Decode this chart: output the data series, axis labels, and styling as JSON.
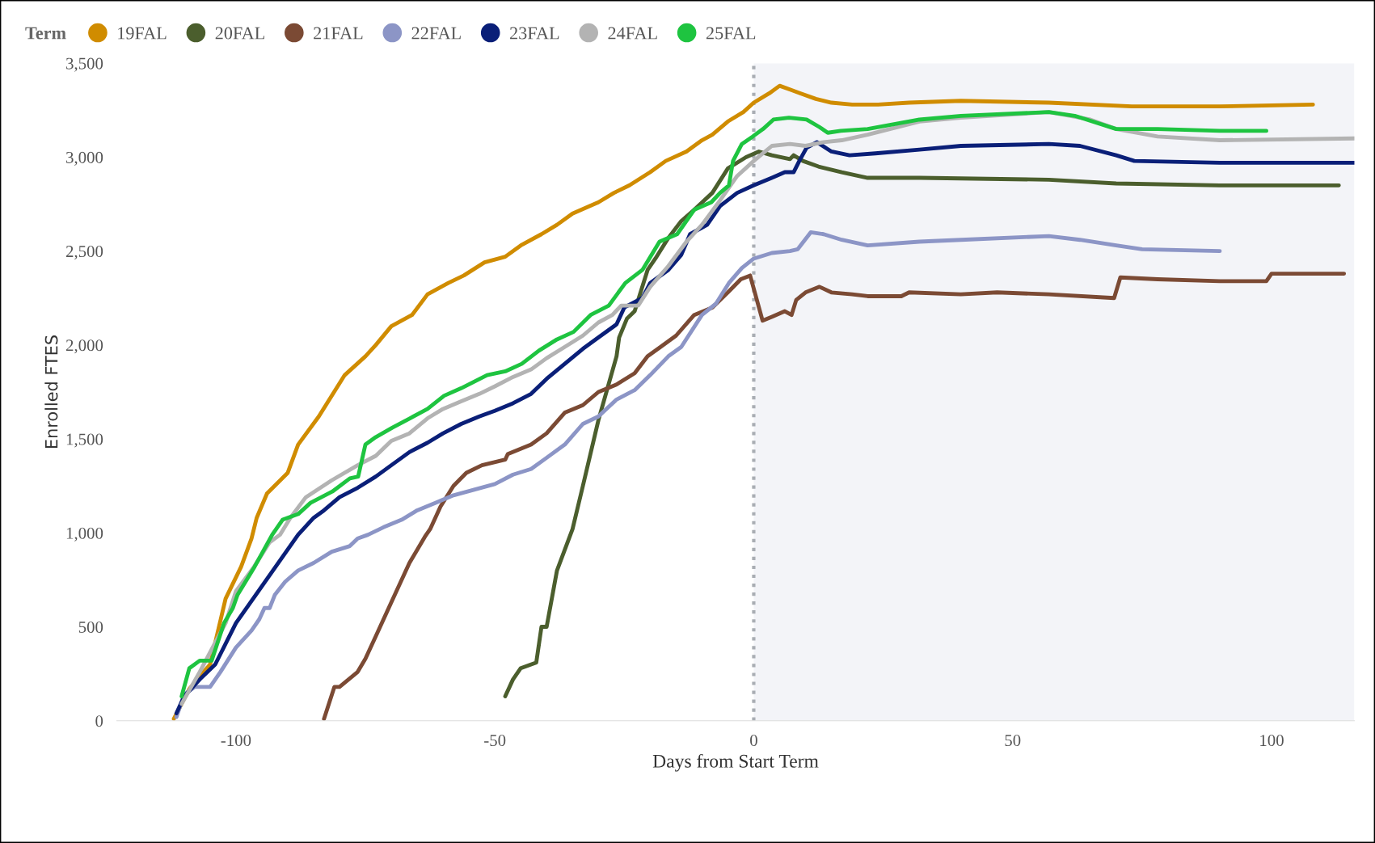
{
  "chart_data": {
    "type": "line",
    "xlabel": "Days from Start Term",
    "ylabel": "Enrolled FTES",
    "legend_title": "Term",
    "legend": "top left",
    "grid": false,
    "marker": "none",
    "line_style": "solid",
    "xlim": [
      -123,
      116
    ],
    "xticks": [
      -100,
      -50,
      0,
      50,
      100
    ],
    "ylim": [
      0,
      3500
    ],
    "yticks": [
      {
        "value": 0,
        "label": "0"
      },
      {
        "value": 500,
        "label": "500"
      },
      {
        "value": 1000,
        "label": "1,000"
      },
      {
        "value": 1500,
        "label": "1,500"
      },
      {
        "value": 2000,
        "label": "2,000"
      },
      {
        "value": 2500,
        "label": "2,500"
      },
      {
        "value": 3000,
        "label": "3,000"
      },
      {
        "value": 3500,
        "label": "3,500"
      }
    ],
    "ref_lines": [
      {
        "axis": "x",
        "value": 0,
        "label": null,
        "color": "#a9adb3",
        "line_style": "dotted"
      }
    ],
    "bands": [
      {
        "axis": "x",
        "from": 0,
        "to": 116,
        "label": null,
        "color": "#f3f4f8"
      }
    ],
    "series": [
      {
        "name": "19FAL",
        "color": "#d08c00",
        "x": [
          -112,
          -109,
          -105,
          -102,
          -99,
          -97,
          -96,
          -94,
          -90,
          -88,
          -84,
          -79,
          -75,
          -73,
          -70,
          -66,
          -63,
          -59,
          -56,
          -52,
          -48,
          -45,
          -41,
          -38,
          -35,
          -30,
          -27,
          -24,
          -20,
          -17,
          -13,
          -10,
          -8,
          -5,
          -2,
          0,
          3,
          5,
          7,
          9,
          12,
          15,
          19,
          24,
          30,
          40,
          57,
          73,
          90,
          108
        ],
        "values": [
          10,
          170,
          300,
          650,
          820,
          970,
          1080,
          1210,
          1320,
          1470,
          1620,
          1840,
          1940,
          2000,
          2100,
          2160,
          2270,
          2330,
          2370,
          2440,
          2470,
          2530,
          2590,
          2640,
          2700,
          2760,
          2810,
          2850,
          2920,
          2980,
          3030,
          3090,
          3120,
          3190,
          3240,
          3290,
          3340,
          3380,
          3360,
          3340,
          3310,
          3290,
          3280,
          3280,
          3290,
          3300,
          3290,
          3270,
          3270,
          3280
        ]
      },
      {
        "name": "20FAL",
        "color": "#4b5e2d",
        "x": [
          -48,
          -46.5,
          -45,
          -42,
          -41,
          -40,
          -38,
          -35,
          -33,
          -30,
          -26.5,
          -26,
          -24.5,
          -23,
          -20.5,
          -19,
          -16.5,
          -14,
          -11.5,
          -8,
          -5,
          -1.5,
          1,
          3.5,
          7,
          7.7,
          9.5,
          12.5,
          17,
          22,
          32,
          57,
          70,
          90,
          113
        ],
        "values": [
          130,
          220,
          280,
          310,
          500,
          500,
          800,
          1020,
          1250,
          1600,
          1940,
          2040,
          2140,
          2180,
          2400,
          2460,
          2570,
          2660,
          2720,
          2810,
          2940,
          3000,
          3030,
          3010,
          2990,
          3010,
          2980,
          2950,
          2920,
          2890,
          2890,
          2880,
          2860,
          2850,
          2850
        ]
      },
      {
        "name": "21FAL",
        "color": "#7b4a34",
        "x": [
          -83,
          -81,
          -80,
          -76.5,
          -75,
          -73,
          -70,
          -66.5,
          -63.5,
          -62.5,
          -60.5,
          -58,
          -55.5,
          -52.5,
          -48,
          -47.5,
          -43,
          -40,
          -36.5,
          -33,
          -30,
          -26.5,
          -23,
          -20.5,
          -18,
          -15,
          -11.5,
          -8,
          -5,
          -2.5,
          -0.7,
          1.7,
          3.5,
          6,
          7.3,
          8.2,
          10,
          12.7,
          15,
          19,
          22,
          28.5,
          30,
          40,
          47,
          57,
          69.6,
          70.8,
          78,
          90,
          99,
          100,
          114
        ],
        "values": [
          10,
          180,
          180,
          260,
          330,
          450,
          630,
          840,
          980,
          1020,
          1140,
          1250,
          1320,
          1360,
          1390,
          1420,
          1470,
          1530,
          1640,
          1680,
          1750,
          1790,
          1850,
          1940,
          1990,
          2050,
          2160,
          2200,
          2280,
          2350,
          2370,
          2130,
          2150,
          2180,
          2160,
          2240,
          2280,
          2310,
          2280,
          2270,
          2260,
          2260,
          2280,
          2270,
          2280,
          2270,
          2250,
          2360,
          2350,
          2340,
          2340,
          2380,
          2380
        ]
      },
      {
        "name": "22FAL",
        "color": "#8c95c6",
        "x": [
          -111.5,
          -110,
          -108,
          -105,
          -103,
          -100,
          -97,
          -95.5,
          -94.5,
          -93.5,
          -92.5,
          -90.5,
          -88,
          -85,
          -81.5,
          -78,
          -76.5,
          -74.5,
          -71.5,
          -68,
          -65,
          -61.5,
          -58,
          -54,
          -50,
          -46.5,
          -43,
          -40,
          -36.5,
          -33,
          -30,
          -26.5,
          -23,
          -20,
          -16.5,
          -14,
          -10,
          -7.3,
          -4.8,
          -2.3,
          0,
          3.5,
          7,
          8.5,
          11,
          13.5,
          17,
          22,
          32,
          40,
          57,
          63,
          70,
          75,
          90
        ],
        "values": [
          20,
          140,
          180,
          180,
          260,
          390,
          480,
          540,
          600,
          600,
          670,
          740,
          800,
          840,
          900,
          930,
          970,
          990,
          1030,
          1070,
          1120,
          1160,
          1200,
          1230,
          1260,
          1310,
          1340,
          1400,
          1470,
          1580,
          1620,
          1710,
          1760,
          1840,
          1940,
          1990,
          2160,
          2220,
          2330,
          2410,
          2460,
          2490,
          2500,
          2510,
          2600,
          2590,
          2560,
          2530,
          2550,
          2560,
          2580,
          2560,
          2530,
          2510,
          2500
        ]
      },
      {
        "name": "23FAL",
        "color": "#0a1f78",
        "x": [
          -111.5,
          -110,
          -107,
          -104,
          -100,
          -88,
          -85,
          -83,
          -80,
          -76.5,
          -73,
          -70,
          -66.5,
          -63,
          -60,
          -56.5,
          -53,
          -50,
          -46.5,
          -43,
          -40,
          -36.5,
          -33,
          -30,
          -26.5,
          -25,
          -21.5,
          -20,
          -16.5,
          -14,
          -12.3,
          -9,
          -6.5,
          -3.2,
          0,
          3.5,
          6,
          7.7,
          8.8,
          10.2,
          12.2,
          15,
          18.5,
          23.5,
          32,
          40,
          57,
          63,
          70,
          73.5,
          90,
          116
        ],
        "values": [
          40,
          130,
          220,
          300,
          520,
          990,
          1080,
          1120,
          1190,
          1240,
          1300,
          1360,
          1430,
          1480,
          1530,
          1580,
          1620,
          1650,
          1690,
          1740,
          1820,
          1900,
          1980,
          2040,
          2110,
          2200,
          2250,
          2330,
          2400,
          2480,
          2590,
          2640,
          2740,
          2810,
          2850,
          2890,
          2920,
          2920,
          2980,
          3050,
          3080,
          3030,
          3010,
          3020,
          3040,
          3060,
          3070,
          3060,
          3010,
          2980,
          2970,
          2970
        ]
      },
      {
        "name": "24FAL",
        "color": "#b3b3b3",
        "x": [
          -110.5,
          -107,
          -102,
          -100,
          -96.5,
          -93.5,
          -91.5,
          -89.5,
          -86.5,
          -81.5,
          -76.5,
          -73,
          -70,
          -66.5,
          -63,
          -60,
          -56.5,
          -53,
          -50,
          -46.5,
          -43,
          -40,
          -36.5,
          -33,
          -30,
          -27.3,
          -25.6,
          -22.3,
          -20,
          -16.5,
          -13,
          -10,
          -6.5,
          -3.2,
          0,
          3.5,
          7,
          10,
          13.5,
          17,
          22,
          32,
          40,
          57,
          65,
          70,
          78,
          90,
          116
        ],
        "values": [
          90,
          260,
          520,
          690,
          820,
          950,
          990,
          1080,
          1190,
          1280,
          1360,
          1410,
          1490,
          1530,
          1610,
          1660,
          1700,
          1740,
          1780,
          1830,
          1870,
          1930,
          1990,
          2050,
          2120,
          2160,
          2210,
          2210,
          2310,
          2420,
          2550,
          2640,
          2770,
          2900,
          2980,
          3060,
          3070,
          3060,
          3080,
          3090,
          3120,
          3190,
          3210,
          3240,
          3200,
          3150,
          3110,
          3090,
          3100
        ]
      },
      {
        "name": "25FAL",
        "color": "#1ec440",
        "x": [
          -110.5,
          -109,
          -107,
          -104.7,
          -102.3,
          -100.6,
          -99.7,
          -96.4,
          -93,
          -91,
          -88,
          -85.6,
          -81.4,
          -78,
          -76.4,
          -75,
          -73,
          -69.8,
          -66.4,
          -63,
          -59.8,
          -56.5,
          -51.5,
          -48,
          -44.8,
          -41.5,
          -38,
          -34.8,
          -31.5,
          -28,
          -24.8,
          -21.5,
          -18.2,
          -14.8,
          -11.5,
          -8.2,
          -6.5,
          -4.8,
          -4,
          -2.3,
          -0.2,
          1.8,
          3.8,
          6.8,
          10.2,
          12.7,
          14.3,
          16.8,
          22,
          32,
          40,
          57,
          62,
          70,
          78,
          90,
          99
        ],
        "values": [
          130,
          280,
          320,
          320,
          520,
          600,
          670,
          820,
          990,
          1070,
          1100,
          1160,
          1220,
          1290,
          1300,
          1470,
          1510,
          1560,
          1610,
          1660,
          1730,
          1770,
          1840,
          1860,
          1900,
          1970,
          2030,
          2070,
          2160,
          2210,
          2330,
          2400,
          2550,
          2590,
          2720,
          2760,
          2810,
          2850,
          2980,
          3070,
          3110,
          3150,
          3200,
          3210,
          3200,
          3160,
          3130,
          3140,
          3150,
          3200,
          3220,
          3240,
          3220,
          3150,
          3150,
          3140,
          3140
        ]
      }
    ]
  }
}
